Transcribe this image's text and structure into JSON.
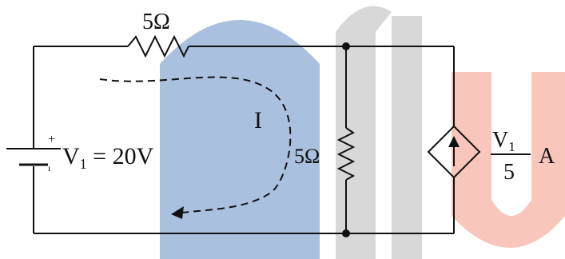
{
  "colors": {
    "wire": "#111111",
    "watermark_blue": "#a9c1df",
    "watermark_gray": "#d4d4d4",
    "watermark_pink": "#f7c0b4",
    "background": "#ffffff"
  },
  "circuit": {
    "top_resistor": {
      "label": "5Ω"
    },
    "source": {
      "polarity_plus": "+",
      "label_prefix": "V",
      "label_sub": "1",
      "label_suffix": " = 20V"
    },
    "loop_current": {
      "label": "I"
    },
    "shunt_resistor": {
      "label": "5Ω"
    },
    "dependent_source": {
      "numerator_prefix": "V",
      "numerator_sub": "1",
      "denominator": "5",
      "unit": "A"
    }
  }
}
